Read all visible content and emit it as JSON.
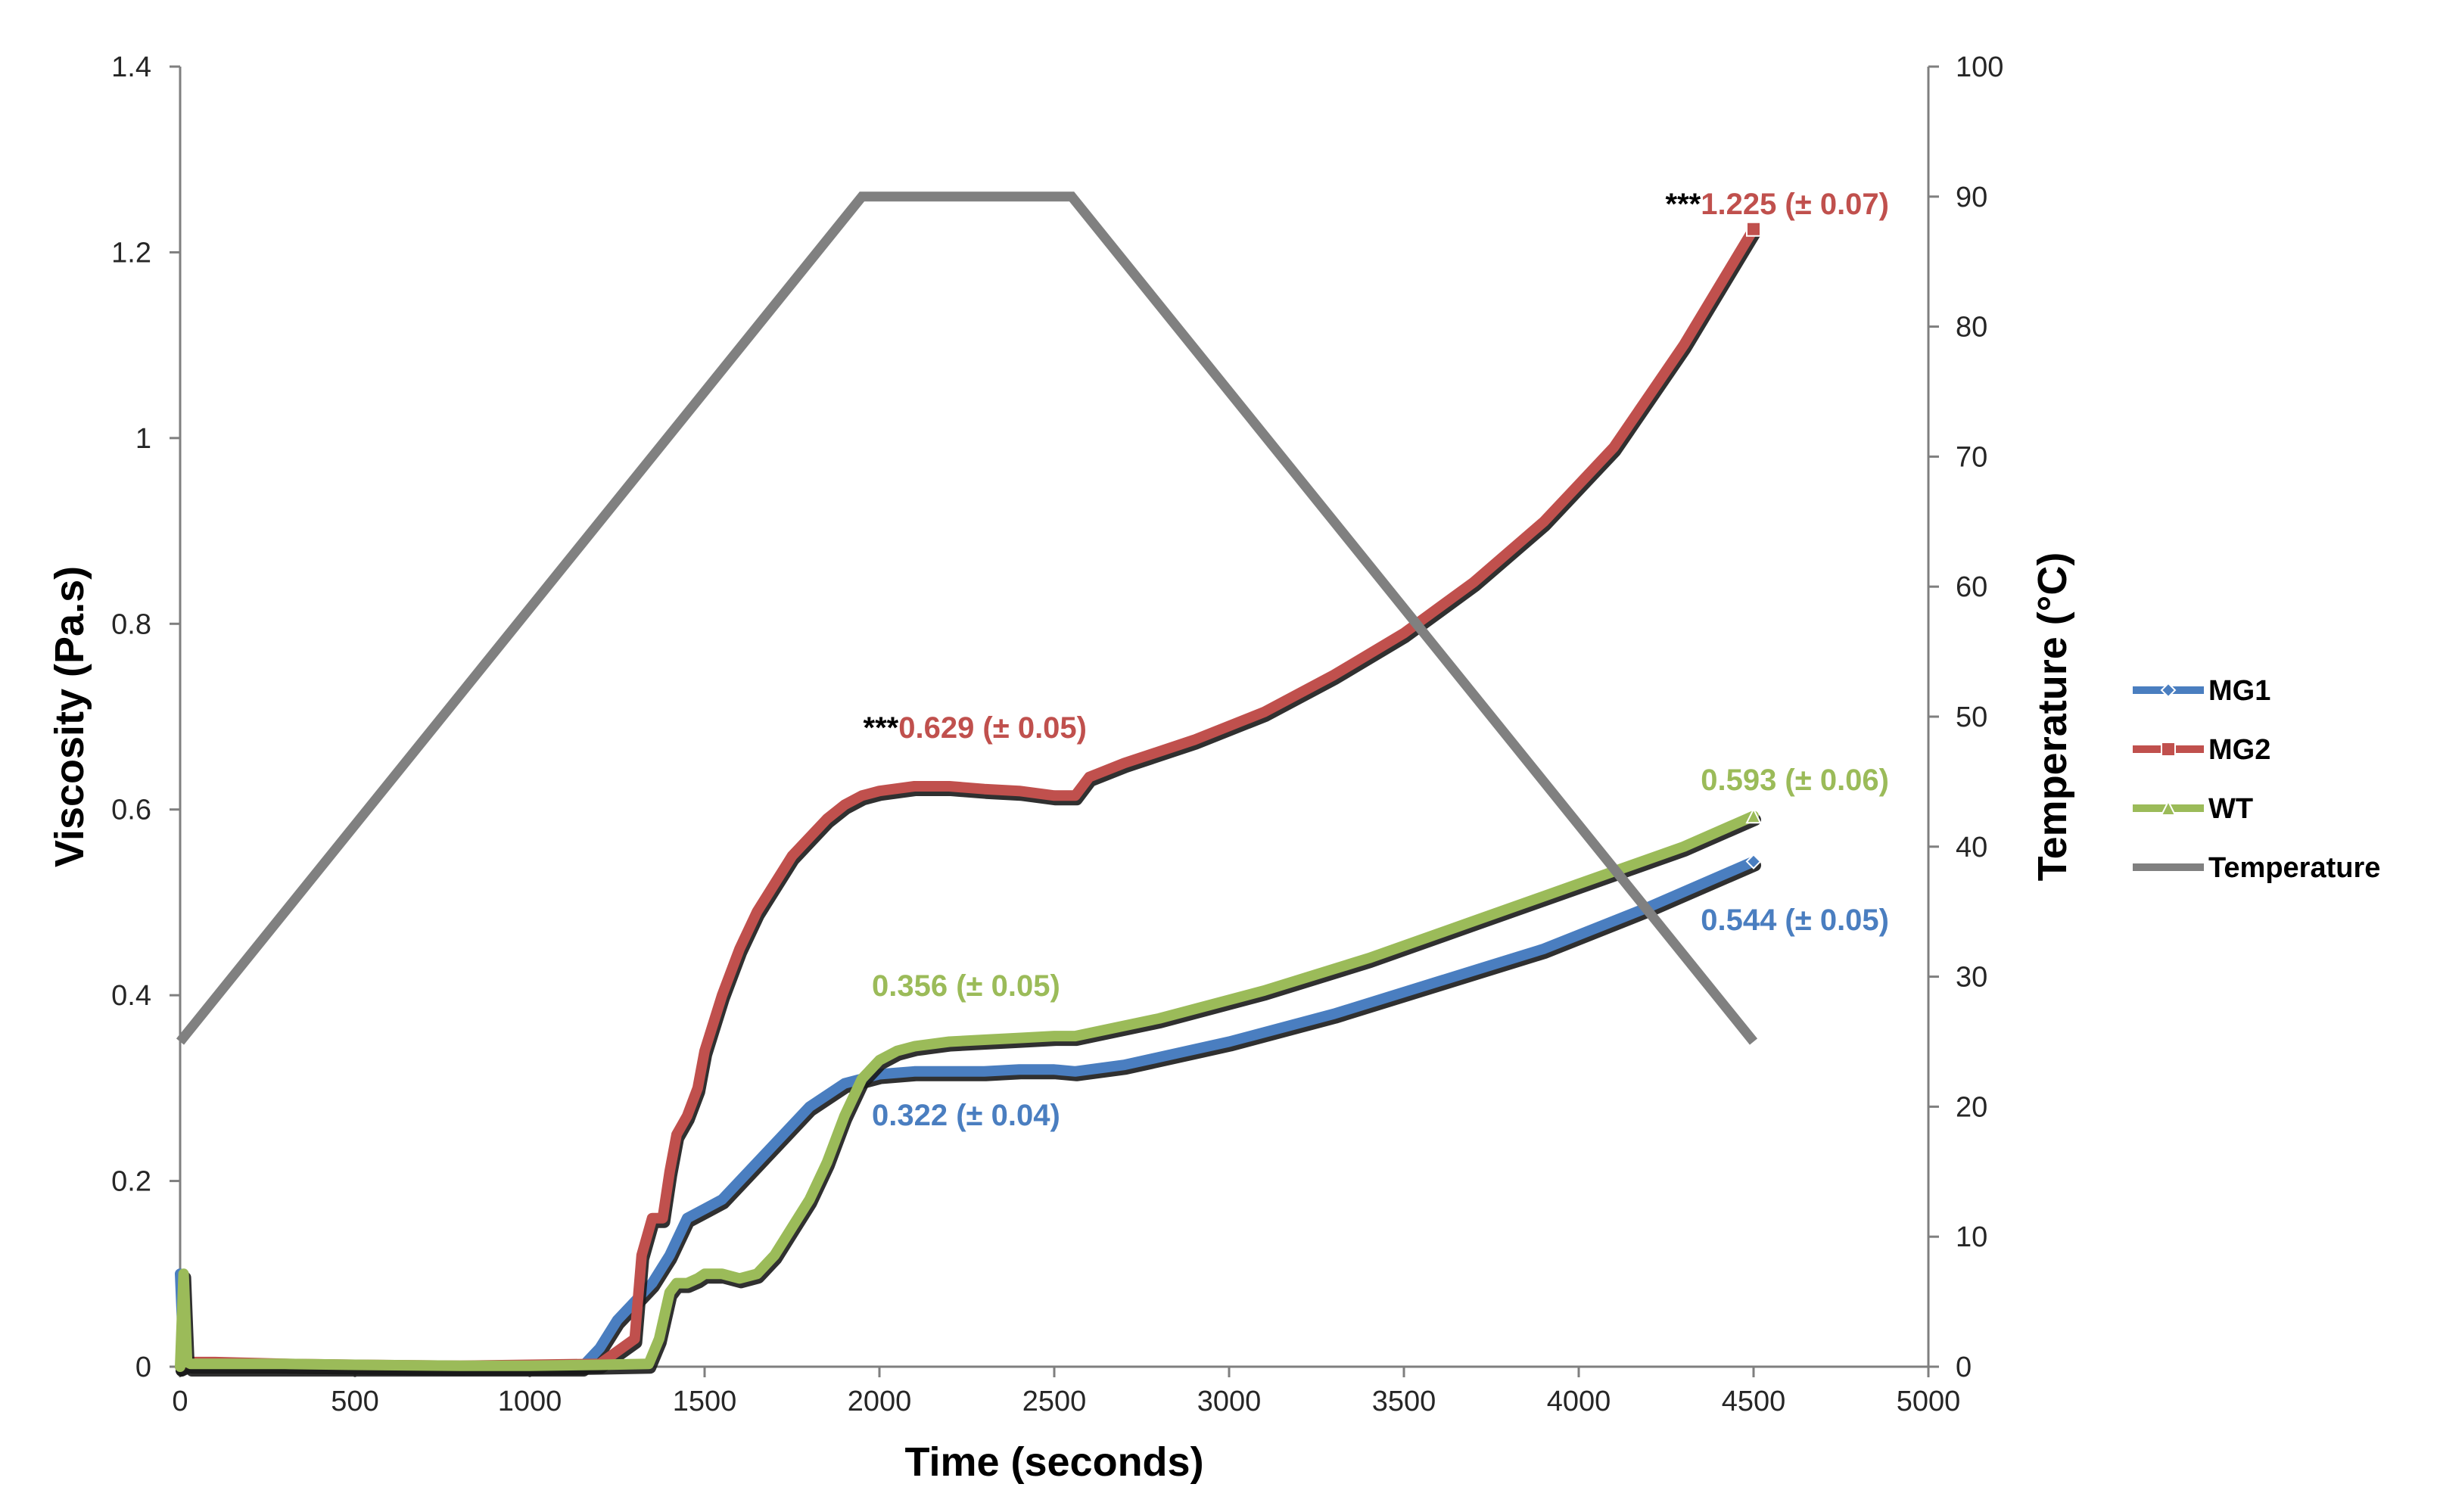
{
  "chart_data": {
    "type": "line",
    "title": "",
    "xlabel": "Time (seconds)",
    "ylabel": "Viscosity  (Pa.s)",
    "y2label": "Temperature (°C)",
    "xlim": [
      0,
      5000
    ],
    "ylim": [
      0,
      1.4
    ],
    "y2lim": [
      0,
      100
    ],
    "xticks": [
      0,
      500,
      1000,
      1500,
      2000,
      2500,
      3000,
      3500,
      4000,
      4500,
      5000
    ],
    "yticks": [
      0,
      0.2,
      0.4,
      0.6,
      0.8,
      1,
      1.2,
      1.4
    ],
    "y2ticks": [
      0,
      10,
      20,
      30,
      40,
      50,
      60,
      70,
      80,
      90,
      100
    ],
    "xtick_labels": [
      "0",
      "500",
      "1000",
      "1500",
      "2000",
      "2500",
      "3000",
      "3500",
      "4000",
      "4500",
      "5000"
    ],
    "ytick_labels": [
      "0",
      "0.2",
      "0.4",
      "0.6",
      "0.8",
      "1",
      "1.2",
      "1.4"
    ],
    "y2tick_labels": [
      "0",
      "10",
      "20",
      "30",
      "40",
      "50",
      "60",
      "70",
      "80",
      "90",
      "100"
    ],
    "legend_position": "right",
    "series": [
      {
        "name": "MG1",
        "axis": "left",
        "color": "#4A7EC0",
        "marker": "diamond",
        "x": [
          0,
          10,
          30,
          100,
          200,
          400,
          600,
          800,
          1000,
          1150,
          1200,
          1250,
          1300,
          1350,
          1400,
          1450,
          1500,
          1550,
          1600,
          1700,
          1800,
          1900,
          2000,
          2100,
          2200,
          2300,
          2400,
          2500,
          2560,
          2700,
          3000,
          3300,
          3600,
          3900,
          4200,
          4500
        ],
        "y": [
          0.1,
          0.01,
          0.0,
          0.0,
          0.0,
          0.0,
          0.0,
          0.0,
          0.0,
          0.0,
          0.02,
          0.05,
          0.07,
          0.09,
          0.12,
          0.16,
          0.17,
          0.18,
          0.2,
          0.24,
          0.28,
          0.305,
          0.315,
          0.318,
          0.318,
          0.318,
          0.32,
          0.32,
          0.318,
          0.325,
          0.35,
          0.38,
          0.415,
          0.45,
          0.495,
          0.544
        ]
      },
      {
        "name": "MG2",
        "axis": "left",
        "color": "#C0504D",
        "marker": "square",
        "x": [
          0,
          30,
          100,
          300,
          500,
          800,
          1000,
          1200,
          1300,
          1320,
          1350,
          1380,
          1400,
          1420,
          1450,
          1480,
          1500,
          1550,
          1600,
          1650,
          1700,
          1750,
          1800,
          1850,
          1900,
          1950,
          2000,
          2100,
          2200,
          2300,
          2400,
          2500,
          2560,
          2600,
          2700,
          2900,
          3100,
          3300,
          3500,
          3700,
          3900,
          4100,
          4300,
          4500
        ],
        "y": [
          0.0,
          0.005,
          0.005,
          0.003,
          0.002,
          0.001,
          0.002,
          0.003,
          0.03,
          0.12,
          0.16,
          0.16,
          0.21,
          0.25,
          0.27,
          0.3,
          0.34,
          0.4,
          0.45,
          0.49,
          0.52,
          0.55,
          0.57,
          0.59,
          0.605,
          0.615,
          0.62,
          0.625,
          0.625,
          0.622,
          0.62,
          0.615,
          0.615,
          0.635,
          0.65,
          0.675,
          0.705,
          0.745,
          0.79,
          0.845,
          0.91,
          0.99,
          1.1,
          1.225
        ]
      },
      {
        "name": "WT",
        "axis": "left",
        "color": "#9BBB59",
        "marker": "triangle",
        "x": [
          0,
          10,
          20,
          30,
          100,
          300,
          500,
          800,
          1000,
          1200,
          1340,
          1370,
          1400,
          1420,
          1450,
          1480,
          1500,
          1550,
          1600,
          1650,
          1700,
          1750,
          1800,
          1850,
          1900,
          1950,
          2000,
          2050,
          2100,
          2200,
          2300,
          2400,
          2500,
          2560,
          2800,
          3100,
          3400,
          3700,
          4000,
          4300,
          4500
        ],
        "y": [
          0.0,
          0.1,
          0.005,
          0.003,
          0.003,
          0.003,
          0.002,
          0.001,
          0.001,
          0.002,
          0.003,
          0.03,
          0.08,
          0.09,
          0.09,
          0.095,
          0.1,
          0.1,
          0.095,
          0.1,
          0.12,
          0.15,
          0.18,
          0.22,
          0.27,
          0.31,
          0.33,
          0.34,
          0.345,
          0.35,
          0.352,
          0.354,
          0.356,
          0.356,
          0.375,
          0.405,
          0.44,
          0.48,
          0.52,
          0.56,
          0.593
        ]
      },
      {
        "name": "Temperature",
        "axis": "right",
        "color": "#808080",
        "marker": "none",
        "x": [
          0,
          1950,
          2550,
          4500
        ],
        "y": [
          25,
          90,
          90,
          25
        ]
      }
    ],
    "annotations": [
      {
        "prefix": "***",
        "text": "1.225 (± 0.07)",
        "color": "#C0504D",
        "x": 4500,
        "y": 1.225
      },
      {
        "prefix": "***",
        "text": "0.629 (± 0.05)",
        "color": "#C0504D",
        "x": 2100,
        "y": 0.629
      },
      {
        "prefix": "",
        "text": "0.593 (± 0.06)",
        "color": "#9BBB59",
        "x": 4500,
        "y": 0.593
      },
      {
        "prefix": "",
        "text": "0.544 (± 0.05)",
        "color": "#4A7EC0",
        "x": 4500,
        "y": 0.544
      },
      {
        "prefix": "",
        "text": "0.356 (± 0.05)",
        "color": "#9BBB59",
        "x": 2100,
        "y": 0.356
      },
      {
        "prefix": "",
        "text": "0.322 (± 0.04)",
        "color": "#4A7EC0",
        "x": 2100,
        "y": 0.322
      }
    ]
  }
}
